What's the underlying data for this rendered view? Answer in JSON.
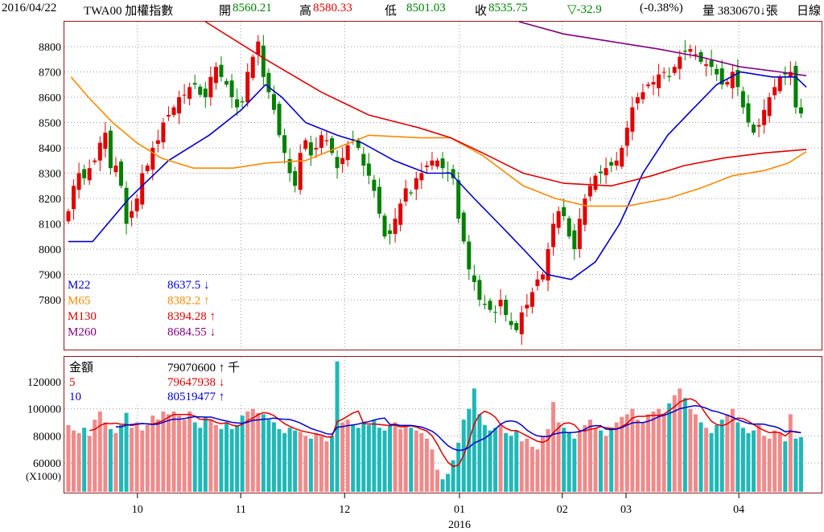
{
  "header": {
    "date": "2016/04/22",
    "symbol": "TWA00 加權指數",
    "open_label": "開",
    "open": "8560.21",
    "high_label": "高",
    "high": "8580.33",
    "low_label": "低",
    "low": "8501.03",
    "close_label": "收",
    "close": "8535.75",
    "change": "▽-32.9",
    "change_pct": "(-0.38%)",
    "volume": "量 3830670↓張",
    "period": "日線"
  },
  "colors": {
    "up": "#e00000",
    "down": "#008000",
    "vol_up": "#f08a8a",
    "vol_down": "#1fb8b8",
    "m22": "#0000cc",
    "m65": "#ff8800",
    "m130": "#e00000",
    "m260": "#800080",
    "frame": "#8b1a1a"
  },
  "price_legend": [
    {
      "name": "M22",
      "value": "8637.5 ↓",
      "color": "#0000cc"
    },
    {
      "name": "M65",
      "value": "8382.2 ↑",
      "color": "#ff8800"
    },
    {
      "name": "M130",
      "value": "8394.28 ↑",
      "color": "#e00000"
    },
    {
      "name": "M260",
      "value": "8684.55 ↓",
      "color": "#800080"
    }
  ],
  "volume_legend": [
    {
      "name": "金額",
      "value": "79070600 ↑ 千",
      "color": "#000000"
    },
    {
      "name": "5",
      "value": "79647938 ↓",
      "color": "#e00000"
    },
    {
      "name": "10",
      "value": "80519477 ↑",
      "color": "#0000cc"
    }
  ],
  "chart_data": {
    "type": "candlestick",
    "price_ticks": [
      "8800",
      "8700",
      "8600",
      "8500",
      "8400",
      "8300",
      "8200",
      "8100",
      "8000",
      "7900",
      "7800"
    ],
    "volume_ticks": [
      "120000",
      "100000",
      "80000",
      "60000"
    ],
    "volume_unit": "(X1000)",
    "months": [
      {
        "label": "10",
        "idx": 13.1
      },
      {
        "label": "11",
        "idx": 32.7
      },
      {
        "label": "12",
        "idx": 52.4
      },
      {
        "label": "01",
        "idx": 74.2
      },
      {
        "label": "02",
        "idx": 93.7
      },
      {
        "label": "03",
        "idx": 105.8
      },
      {
        "label": "04",
        "idx": 127.2
      }
    ],
    "year_label": "2016",
    "close": [
      8150,
      8250,
      8300,
      8280,
      8320,
      8350,
      8420,
      8460,
      8320,
      8330,
      8250,
      8100,
      8150,
      8200,
      8300,
      8330,
      8400,
      8430,
      8500,
      8530,
      8560,
      8600,
      8610,
      8640,
      8650,
      8610,
      8600,
      8680,
      8720,
      8680,
      8650,
      8600,
      8560,
      8580,
      8700,
      8760,
      8820,
      8680,
      8620,
      8550,
      8450,
      8380,
      8300,
      8250,
      8380,
      8430,
      8370,
      8400,
      8450,
      8430,
      8380,
      8320,
      8360,
      8410,
      8430,
      8400,
      8330,
      8290,
      8230,
      8140,
      8050,
      8060,
      8120,
      8180,
      8240,
      8220,
      8280,
      8300,
      8330,
      8350,
      8350,
      8320,
      8300,
      8280,
      8120,
      8030,
      7920,
      7870,
      7800,
      7780,
      7760,
      7750,
      7800,
      7740,
      7700,
      7680,
      7750,
      7780,
      7830,
      7880,
      7900,
      8000,
      8100,
      8150,
      8130,
      8050,
      8000,
      8120,
      8200,
      8250,
      8290,
      8300,
      8320,
      8330,
      8350,
      8400,
      8480,
      8560,
      8600,
      8620,
      8650,
      8660,
      8690,
      8700,
      8680,
      8720,
      8760,
      8780,
      8790,
      8770,
      8740,
      8730,
      8720,
      8690,
      8650,
      8660,
      8700,
      8640,
      8560,
      8500,
      8460,
      8490,
      8550,
      8600,
      8640,
      8680,
      8690,
      8700,
      8560,
      8536
    ],
    "volume": [
      88000,
      84000,
      82000,
      86000,
      80000,
      92000,
      98000,
      90000,
      85000,
      82000,
      88000,
      97000,
      86000,
      90000,
      84000,
      88000,
      95000,
      92000,
      98000,
      96000,
      98000,
      95000,
      92000,
      98000,
      90000,
      86000,
      94000,
      92000,
      88000,
      85000,
      90000,
      85000,
      88000,
      95000,
      98000,
      100000,
      97000,
      96000,
      92000,
      90000,
      85000,
      82000,
      86000,
      84000,
      83000,
      80000,
      78000,
      82000,
      80000,
      76000,
      80000,
      135000,
      90000,
      92000,
      88000,
      86000,
      90000,
      88000,
      92000,
      86000,
      84000,
      88000,
      90000,
      85000,
      88000,
      86000,
      84000,
      82000,
      78000,
      70000,
      55000,
      48000,
      52000,
      62000,
      75000,
      92000,
      100000,
      115000,
      96000,
      88000,
      84000,
      86000,
      88000,
      82000,
      80000,
      84000,
      76000,
      78000,
      72000,
      70000,
      80000,
      85000,
      105000,
      90000,
      86000,
      82000,
      78000,
      84000,
      88000,
      92000,
      86000,
      84000,
      80000,
      86000,
      90000,
      94000,
      96000,
      100000,
      92000,
      90000,
      96000,
      98000,
      100000,
      96000,
      104000,
      110000,
      115000,
      108000,
      100000,
      96000,
      90000,
      86000,
      82000,
      88000,
      92000,
      96000,
      100000,
      90000,
      86000,
      82000,
      84000,
      88000,
      80000,
      78000,
      84000,
      82000,
      76000,
      96000,
      78000,
      79070
    ],
    "ma_lines": {
      "m22": [
        [
          0,
          8030
        ],
        [
          4.6,
          8030
        ],
        [
          11.5,
          8200
        ],
        [
          19,
          8350
        ],
        [
          26.7,
          8450
        ],
        [
          32.8,
          8550
        ],
        [
          37.4,
          8650
        ],
        [
          40.5,
          8600
        ],
        [
          45,
          8500
        ],
        [
          51,
          8450
        ],
        [
          55.7,
          8420
        ],
        [
          61.8,
          8350
        ],
        [
          68,
          8300
        ],
        [
          72.5,
          8300
        ],
        [
          77,
          8200
        ],
        [
          81.7,
          8100
        ],
        [
          86.3,
          8000
        ],
        [
          90.8,
          7900
        ],
        [
          95.4,
          7880
        ],
        [
          100,
          7950
        ],
        [
          104.6,
          8100
        ],
        [
          109,
          8300
        ],
        [
          113.7,
          8450
        ],
        [
          118.3,
          8550
        ],
        [
          123,
          8650
        ],
        [
          127.5,
          8700
        ],
        [
          133.6,
          8680
        ],
        [
          138,
          8680
        ],
        [
          140,
          8640
        ]
      ],
      "m65": [
        [
          0.5,
          8680
        ],
        [
          3.8,
          8600
        ],
        [
          8.4,
          8500
        ],
        [
          13,
          8420
        ],
        [
          17.6,
          8360
        ],
        [
          23.7,
          8320
        ],
        [
          31.3,
          8320
        ],
        [
          37.4,
          8340
        ],
        [
          45,
          8350
        ],
        [
          51,
          8400
        ],
        [
          57,
          8450
        ],
        [
          66.4,
          8440
        ],
        [
          72.5,
          8440
        ],
        [
          78.6,
          8370
        ],
        [
          86.3,
          8250
        ],
        [
          92.4,
          8200
        ],
        [
          98.5,
          8170
        ],
        [
          106,
          8170
        ],
        [
          113.7,
          8200
        ],
        [
          119.8,
          8240
        ],
        [
          126,
          8290
        ],
        [
          132,
          8310
        ],
        [
          136.6,
          8340
        ],
        [
          140,
          8385
        ]
      ],
      "m130": [
        [
          26,
          8900
        ],
        [
          37.4,
          8750
        ],
        [
          48,
          8620
        ],
        [
          57,
          8530
        ],
        [
          66.4,
          8480
        ],
        [
          72.5,
          8440
        ],
        [
          78.6,
          8380
        ],
        [
          86.3,
          8300
        ],
        [
          94,
          8260
        ],
        [
          103,
          8250
        ],
        [
          110.7,
          8290
        ],
        [
          116.8,
          8330
        ],
        [
          124.4,
          8360
        ],
        [
          132,
          8380
        ],
        [
          140,
          8394
        ]
      ],
      "m260": [
        [
          85.5,
          8900
        ],
        [
          94,
          8850
        ],
        [
          103,
          8820
        ],
        [
          112,
          8790
        ],
        [
          119.8,
          8760
        ],
        [
          127.5,
          8720
        ],
        [
          135,
          8700
        ],
        [
          140,
          8685
        ]
      ]
    }
  }
}
